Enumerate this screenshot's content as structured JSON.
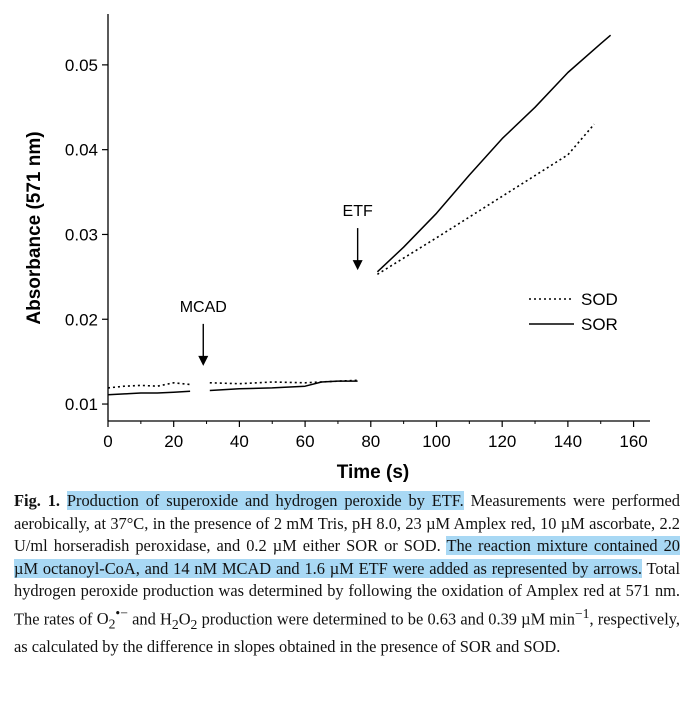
{
  "chart_data": {
    "type": "line",
    "xlabel": "Time (s)",
    "ylabel": "Absorbance (571 nm)",
    "xlim": [
      0,
      165
    ],
    "ylim": [
      0.008,
      0.056
    ],
    "xticks": [
      0,
      20,
      40,
      60,
      80,
      100,
      120,
      140,
      160
    ],
    "yticks": [
      0.01,
      0.02,
      0.03,
      0.04,
      0.05
    ],
    "ytick_labels": [
      "0.01",
      "0.02",
      "0.03",
      "0.04",
      "0.05"
    ],
    "legend": {
      "position": "right",
      "entries": [
        {
          "name": "SOD",
          "style": "dotted"
        },
        {
          "name": "SOR",
          "style": "solid"
        }
      ]
    },
    "series": [
      {
        "name": "SOD",
        "style": "dotted",
        "segments": [
          [
            [
              0,
              0.0119
            ],
            [
              5,
              0.0121
            ],
            [
              10,
              0.0122
            ],
            [
              15,
              0.0121
            ],
            [
              20,
              0.0125
            ],
            [
              25,
              0.0123
            ]
          ],
          [
            [
              31,
              0.0125
            ],
            [
              40,
              0.0124
            ],
            [
              50,
              0.0126
            ],
            [
              60,
              0.0125
            ],
            [
              70,
              0.0127
            ],
            [
              76,
              0.0128
            ]
          ],
          [
            [
              82,
              0.0253
            ],
            [
              100,
              0.0296
            ],
            [
              120,
              0.0345
            ],
            [
              140,
              0.0394
            ],
            [
              148,
              0.043
            ]
          ]
        ]
      },
      {
        "name": "SOR",
        "style": "solid",
        "segments": [
          [
            [
              0,
              0.0111
            ],
            [
              5,
              0.0112
            ],
            [
              10,
              0.0113
            ],
            [
              15,
              0.0113
            ],
            [
              20,
              0.0114
            ],
            [
              25,
              0.0115
            ]
          ],
          [
            [
              31,
              0.0116
            ],
            [
              40,
              0.0118
            ],
            [
              50,
              0.0119
            ],
            [
              60,
              0.0121
            ],
            [
              65,
              0.0126
            ],
            [
              70,
              0.0127
            ],
            [
              76,
              0.0127
            ]
          ],
          [
            [
              82,
              0.0256
            ],
            [
              90,
              0.0285
            ],
            [
              100,
              0.0325
            ],
            [
              110,
              0.037
            ],
            [
              120,
              0.0413
            ],
            [
              130,
              0.045
            ],
            [
              140,
              0.0491
            ],
            [
              150,
              0.0525
            ],
            [
              153,
              0.0535
            ]
          ]
        ]
      }
    ],
    "annotations": [
      {
        "label": "MCAD",
        "x": 29,
        "y": 0.0145,
        "arrow": "down"
      },
      {
        "label": "ETF",
        "x": 76,
        "y": 0.0258,
        "arrow": "down"
      }
    ]
  },
  "caption": {
    "label": "Fig. 1.",
    "highlight1": "Production of superoxide and hydrogen peroxide by ETF.",
    "text1": " Measurements were performed aerobically, at 37°C, in the presence of 2 mM Tris, pH 8.0, 23 µM Amplex red, 10 µM ascorbate, 2.2 U/ml horseradish peroxidase, and 0.2 µM either SOR or SOD. ",
    "highlight2": "The reaction mixture contained 20 µM octanoyl-CoA, and 14 nM MCAD and 1.6 µM ETF were added as represented by arrows.",
    "text2": " Total hydrogen peroxide production was determined by following the oxidation of Amplex red at 571 nm. The rates of ",
    "o2_symbol": "O",
    "o2_sub": "2",
    "o2_sup": "•−",
    "text3": " and H",
    "h2o2_sub1": "2",
    "h2o2_o": "O",
    "h2o2_sub2": "2",
    "text4": " production were determined to be 0.63 and 0.39 µM min",
    "min_sup": "−1",
    "text5": ", respectively, as calculated by the difference in slopes obtained in the presence of SOR and SOD."
  }
}
